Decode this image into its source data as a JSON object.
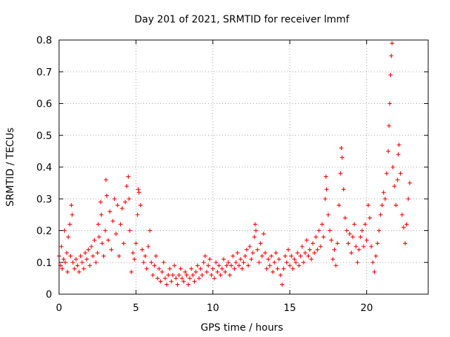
{
  "chart_data": {
    "type": "scatter",
    "title": "Day 201 of 2021, SRMTID for receiver lmmf",
    "xlabel": "GPS time / hours",
    "ylabel": "SRMTID / TECUs",
    "xlim": [
      0,
      24
    ],
    "ylim": [
      0,
      0.8
    ],
    "xticks": [
      0,
      5,
      10,
      15,
      20
    ],
    "xtick_labels": [
      "0",
      "5",
      "10",
      "15",
      "20"
    ],
    "yticks": [
      0,
      0.1,
      0.2,
      0.3,
      0.4,
      0.5,
      0.6,
      0.7,
      0.8
    ],
    "ytick_labels": [
      "0",
      "0.1",
      "0.2",
      "0.3",
      "0.4",
      "0.5",
      "0.6",
      "0.7",
      "0.8"
    ],
    "grid": true,
    "marker": "plus",
    "color": "#ff0000",
    "series": [
      {
        "name": "SRMTID",
        "points": [
          [
            0.0,
            0.12
          ],
          [
            0.1,
            0.09
          ],
          [
            0.15,
            0.15
          ],
          [
            0.2,
            0.08
          ],
          [
            0.3,
            0.11
          ],
          [
            0.35,
            0.2
          ],
          [
            0.4,
            0.1
          ],
          [
            0.5,
            0.13
          ],
          [
            0.55,
            0.07
          ],
          [
            0.6,
            0.18
          ],
          [
            0.7,
            0.22
          ],
          [
            0.75,
            0.12
          ],
          [
            0.8,
            0.28
          ],
          [
            0.85,
            0.25
          ],
          [
            0.9,
            0.1
          ],
          [
            1.0,
            0.08
          ],
          [
            1.1,
            0.11
          ],
          [
            1.2,
            0.09
          ],
          [
            1.3,
            0.07
          ],
          [
            1.4,
            0.12
          ],
          [
            1.5,
            0.1
          ],
          [
            1.6,
            0.08
          ],
          [
            1.7,
            0.13
          ],
          [
            1.8,
            0.11
          ],
          [
            1.9,
            0.14
          ],
          [
            2.0,
            0.09
          ],
          [
            2.1,
            0.15
          ],
          [
            2.2,
            0.12
          ],
          [
            2.3,
            0.17
          ],
          [
            2.4,
            0.1
          ],
          [
            2.5,
            0.13
          ],
          [
            2.55,
            0.22
          ],
          [
            2.6,
            0.18
          ],
          [
            2.7,
            0.29
          ],
          [
            2.75,
            0.25
          ],
          [
            2.8,
            0.16
          ],
          [
            2.9,
            0.12
          ],
          [
            3.0,
            0.2
          ],
          [
            3.05,
            0.36
          ],
          [
            3.1,
            0.31
          ],
          [
            3.2,
            0.17
          ],
          [
            3.3,
            0.26
          ],
          [
            3.4,
            0.14
          ],
          [
            3.5,
            0.23
          ],
          [
            3.6,
            0.3
          ],
          [
            3.7,
            0.19
          ],
          [
            3.8,
            0.28
          ],
          [
            3.9,
            0.12
          ],
          [
            4.0,
            0.22
          ],
          [
            4.1,
            0.27
          ],
          [
            4.2,
            0.16
          ],
          [
            4.3,
            0.29
          ],
          [
            4.4,
            0.34
          ],
          [
            4.5,
            0.37
          ],
          [
            4.55,
            0.3
          ],
          [
            4.6,
            0.2
          ],
          [
            4.7,
            0.07
          ],
          [
            4.8,
            0.13
          ],
          [
            4.9,
            0.11
          ],
          [
            5.0,
            0.16
          ],
          [
            5.1,
            0.25
          ],
          [
            5.15,
            0.33
          ],
          [
            5.2,
            0.32
          ],
          [
            5.3,
            0.28
          ],
          [
            5.4,
            0.14
          ],
          [
            5.5,
            0.1
          ],
          [
            5.6,
            0.12
          ],
          [
            5.7,
            0.08
          ],
          [
            5.8,
            0.15
          ],
          [
            5.9,
            0.2
          ],
          [
            6.0,
            0.1
          ],
          [
            6.1,
            0.06
          ],
          [
            6.2,
            0.09
          ],
          [
            6.3,
            0.12
          ],
          [
            6.4,
            0.05
          ],
          [
            6.5,
            0.08
          ],
          [
            6.6,
            0.04
          ],
          [
            6.7,
            0.07
          ],
          [
            6.8,
            0.1
          ],
          [
            6.9,
            0.05
          ],
          [
            7.0,
            0.03
          ],
          [
            7.1,
            0.06
          ],
          [
            7.2,
            0.08
          ],
          [
            7.3,
            0.04
          ],
          [
            7.4,
            0.06
          ],
          [
            7.5,
            0.09
          ],
          [
            7.6,
            0.05
          ],
          [
            7.7,
            0.03
          ],
          [
            7.8,
            0.06
          ],
          [
            7.9,
            0.08
          ],
          [
            8.0,
            0.05
          ],
          [
            8.1,
            0.04
          ],
          [
            8.2,
            0.07
          ],
          [
            8.3,
            0.06
          ],
          [
            8.4,
            0.03
          ],
          [
            8.5,
            0.05
          ],
          [
            8.6,
            0.08
          ],
          [
            8.7,
            0.06
          ],
          [
            8.8,
            0.04
          ],
          [
            8.9,
            0.07
          ],
          [
            9.0,
            0.09
          ],
          [
            9.1,
            0.05
          ],
          [
            9.2,
            0.08
          ],
          [
            9.3,
            0.06
          ],
          [
            9.4,
            0.1
          ],
          [
            9.5,
            0.12
          ],
          [
            9.6,
            0.07
          ],
          [
            9.7,
            0.09
          ],
          [
            9.8,
            0.11
          ],
          [
            9.9,
            0.06
          ],
          [
            10.0,
            0.08
          ],
          [
            10.1,
            0.05
          ],
          [
            10.2,
            0.1
          ],
          [
            10.3,
            0.07
          ],
          [
            10.4,
            0.09
          ],
          [
            10.5,
            0.06
          ],
          [
            10.6,
            0.08
          ],
          [
            10.7,
            0.11
          ],
          [
            10.8,
            0.07
          ],
          [
            10.9,
            0.09
          ],
          [
            11.0,
            0.1
          ],
          [
            11.1,
            0.06
          ],
          [
            11.2,
            0.09
          ],
          [
            11.3,
            0.12
          ],
          [
            11.4,
            0.08
          ],
          [
            11.5,
            0.1
          ],
          [
            11.6,
            0.13
          ],
          [
            11.7,
            0.09
          ],
          [
            11.8,
            0.11
          ],
          [
            11.9,
            0.08
          ],
          [
            12.0,
            0.1
          ],
          [
            12.1,
            0.12
          ],
          [
            12.2,
            0.14
          ],
          [
            12.3,
            0.09
          ],
          [
            12.4,
            0.15
          ],
          [
            12.5,
            0.11
          ],
          [
            12.6,
            0.13
          ],
          [
            12.7,
            0.18
          ],
          [
            12.75,
            0.22
          ],
          [
            12.8,
            0.2
          ],
          [
            12.9,
            0.14
          ],
          [
            13.0,
            0.1
          ],
          [
            13.1,
            0.16
          ],
          [
            13.2,
            0.12
          ],
          [
            13.3,
            0.19
          ],
          [
            13.4,
            0.13
          ],
          [
            13.5,
            0.08
          ],
          [
            13.6,
            0.11
          ],
          [
            13.7,
            0.09
          ],
          [
            13.8,
            0.12
          ],
          [
            13.9,
            0.07
          ],
          [
            14.0,
            0.1
          ],
          [
            14.1,
            0.13
          ],
          [
            14.2,
            0.08
          ],
          [
            14.3,
            0.11
          ],
          [
            14.4,
            0.06
          ],
          [
            14.5,
            0.03
          ],
          [
            14.6,
            0.08
          ],
          [
            14.7,
            0.12
          ],
          [
            14.8,
            0.1
          ],
          [
            14.9,
            0.14
          ],
          [
            15.0,
            0.09
          ],
          [
            15.1,
            0.12
          ],
          [
            15.2,
            0.08
          ],
          [
            15.3,
            0.11
          ],
          [
            15.4,
            0.1
          ],
          [
            15.5,
            0.13
          ],
          [
            15.6,
            0.09
          ],
          [
            15.7,
            0.12
          ],
          [
            15.8,
            0.15
          ],
          [
            15.9,
            0.1
          ],
          [
            16.0,
            0.13
          ],
          [
            16.1,
            0.17
          ],
          [
            16.2,
            0.12
          ],
          [
            16.3,
            0.14
          ],
          [
            16.4,
            0.11
          ],
          [
            16.5,
            0.16
          ],
          [
            16.6,
            0.13
          ],
          [
            16.7,
            0.18
          ],
          [
            16.8,
            0.14
          ],
          [
            16.9,
            0.2
          ],
          [
            17.0,
            0.15
          ],
          [
            17.1,
            0.22
          ],
          [
            17.2,
            0.18
          ],
          [
            17.3,
            0.3
          ],
          [
            17.35,
            0.37
          ],
          [
            17.4,
            0.33
          ],
          [
            17.5,
            0.25
          ],
          [
            17.6,
            0.2
          ],
          [
            17.7,
            0.17
          ],
          [
            17.8,
            0.11
          ],
          [
            17.9,
            0.14
          ],
          [
            18.0,
            0.09
          ],
          [
            18.1,
            0.16
          ],
          [
            18.2,
            0.28
          ],
          [
            18.3,
            0.38
          ],
          [
            18.35,
            0.46
          ],
          [
            18.4,
            0.43
          ],
          [
            18.5,
            0.33
          ],
          [
            18.6,
            0.24
          ],
          [
            18.7,
            0.2
          ],
          [
            18.8,
            0.16
          ],
          [
            18.9,
            0.19
          ],
          [
            19.0,
            0.13
          ],
          [
            19.1,
            0.18
          ],
          [
            19.2,
            0.22
          ],
          [
            19.3,
            0.15
          ],
          [
            19.4,
            0.1
          ],
          [
            19.5,
            0.14
          ],
          [
            19.6,
            0.18
          ],
          [
            19.7,
            0.2
          ],
          [
            19.8,
            0.15
          ],
          [
            19.9,
            0.22
          ],
          [
            20.0,
            0.17
          ],
          [
            20.1,
            0.28
          ],
          [
            20.2,
            0.24
          ],
          [
            20.3,
            0.15
          ],
          [
            20.4,
            0.1
          ],
          [
            20.5,
            0.07
          ],
          [
            20.6,
            0.12
          ],
          [
            20.7,
            0.16
          ],
          [
            20.8,
            0.2
          ],
          [
            20.9,
            0.25
          ],
          [
            21.0,
            0.28
          ],
          [
            21.1,
            0.32
          ],
          [
            21.2,
            0.3
          ],
          [
            21.3,
            0.38
          ],
          [
            21.4,
            0.45
          ],
          [
            21.45,
            0.53
          ],
          [
            21.5,
            0.6
          ],
          [
            21.55,
            0.69
          ],
          [
            21.6,
            0.75
          ],
          [
            21.65,
            0.79
          ],
          [
            21.7,
            0.4
          ],
          [
            21.8,
            0.34
          ],
          [
            21.9,
            0.28
          ],
          [
            22.0,
            0.36
          ],
          [
            22.05,
            0.44
          ],
          [
            22.1,
            0.47
          ],
          [
            22.2,
            0.38
          ],
          [
            22.3,
            0.25
          ],
          [
            22.4,
            0.21
          ],
          [
            22.5,
            0.16
          ],
          [
            22.6,
            0.22
          ],
          [
            22.7,
            0.3
          ],
          [
            22.8,
            0.35
          ]
        ]
      }
    ]
  }
}
